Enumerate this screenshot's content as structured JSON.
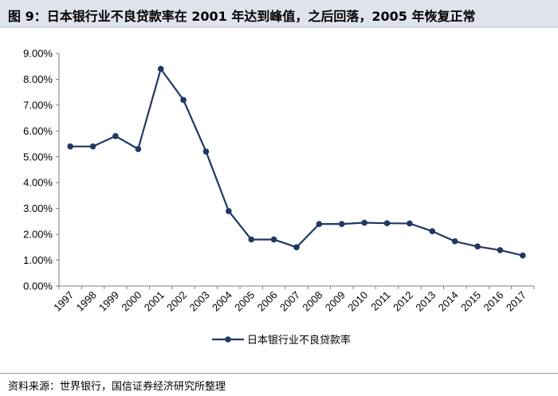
{
  "header": {
    "title": "图 9：日本银行业不良贷款率在 2001 年达到峰值，之后回落，2005 年恢复正常"
  },
  "footer": {
    "source": "资料来源：世界银行，国信证券经济研究所整理"
  },
  "colors": {
    "line": "#1f3864",
    "axis": "#7f7f7f",
    "title_bg": "#dfe3ec"
  },
  "chart_data": {
    "type": "line",
    "title": "",
    "xlabel": "",
    "ylabel": "",
    "x": [
      "1997",
      "1998",
      "1999",
      "2000",
      "2001",
      "2002",
      "2003",
      "2004",
      "2005",
      "2006",
      "2007",
      "2008",
      "2009",
      "2010",
      "2011",
      "2012",
      "2013",
      "2014",
      "2015",
      "2016",
      "2017"
    ],
    "series": [
      {
        "name": "日本银行业不良贷款率",
        "values": [
          5.4,
          5.4,
          5.8,
          5.3,
          8.4,
          7.2,
          5.2,
          2.9,
          1.8,
          1.8,
          1.5,
          2.4,
          2.4,
          2.45,
          2.43,
          2.42,
          2.12,
          1.73,
          1.53,
          1.39,
          1.18
        ]
      }
    ],
    "ylim": [
      0,
      9
    ],
    "yticks": [
      "0.00%",
      "1.00%",
      "2.00%",
      "3.00%",
      "4.00%",
      "5.00%",
      "6.00%",
      "7.00%",
      "8.00%",
      "9.00%"
    ],
    "ytick_values": [
      0,
      1,
      2,
      3,
      4,
      5,
      6,
      7,
      8,
      9
    ],
    "grid": false,
    "legend_position": "bottom"
  }
}
